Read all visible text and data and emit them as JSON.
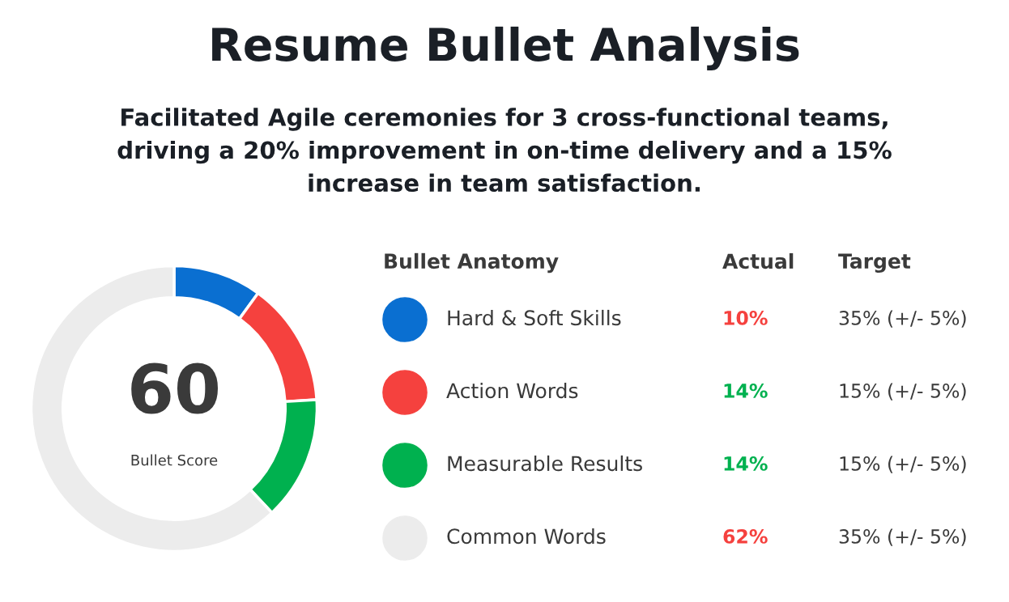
{
  "chart_data": {
    "type": "donut",
    "title": "Resume Bullet Analysis",
    "subtitle": "Facilitated Agile ceremonies for 3 cross-functional teams,\ndriving a 20% improvement in on-time delivery and a 15%\nincrease in team satisfaction.",
    "categories": [
      "Hard & Soft Skills",
      "Action Words",
      "Measurable Results",
      "Common Words"
    ],
    "values": [
      10,
      14,
      14,
      62
    ],
    "colors": [
      "#0a6fd1",
      "#f5413e",
      "#00b14f",
      "#ececec"
    ],
    "value_labels": [
      "10%",
      "14%",
      "14%",
      "62%"
    ],
    "legend": "right",
    "annotations": [
      "60",
      "Bullet Score",
      "Bullet Anatomy",
      "Actual",
      "Target",
      "35% (+/- 5%)",
      "15% (+/- 5%)",
      "15% (+/- 5%)",
      "35% (+/- 5%)"
    ]
  }
}
